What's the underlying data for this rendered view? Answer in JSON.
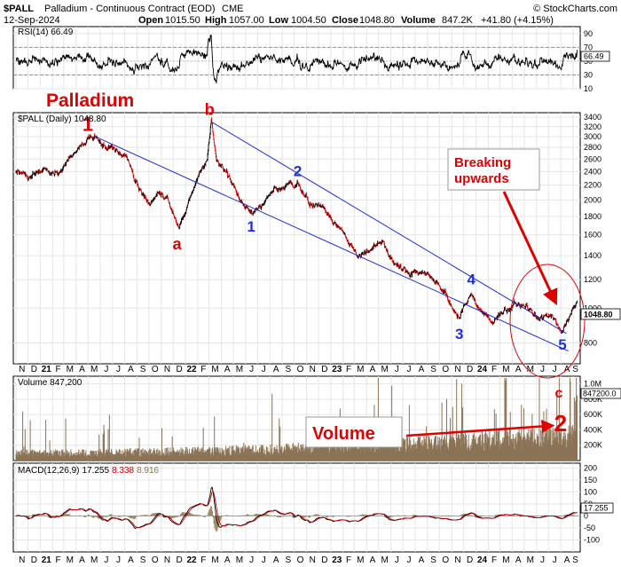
{
  "header": {
    "symbol": "$PALL",
    "name": "Palladium - Continuous Contract (EOD)",
    "exchange": "CME",
    "brand": "© StockCharts.com",
    "date": "12-Sep-2024",
    "open_label": "Open",
    "open": "1015.50",
    "high_label": "High",
    "high": "1057.00",
    "low_label": "Low",
    "low": "1004.50",
    "close_label": "Close",
    "close": "1048.80",
    "volume_label": "Volume",
    "volume": "847.2K",
    "change": "+41.80 (+4.15%)"
  },
  "chart_data": [
    {
      "type": "line",
      "panel": "rsi",
      "label": "RSI(14) 66.49",
      "ylim": [
        10,
        100
      ],
      "yticks": [
        10,
        30,
        50,
        70,
        90
      ],
      "last_value": "66.49",
      "levels": [
        30,
        70
      ]
    },
    {
      "type": "candlestick",
      "panel": "price",
      "label": "$PALL (Daily) 1048.80",
      "scale": "log",
      "ylim": [
        700,
        3500
      ],
      "yticks": [
        800,
        1000,
        1200,
        1400,
        1600,
        1800,
        2000,
        2200,
        2400,
        2600,
        2800,
        3000,
        3200,
        3400
      ],
      "last_value": "1048.80",
      "color": "#000000",
      "down_color": "#cc0000",
      "series": [
        {
          "date": "2020-11-01",
          "value": 2380
        },
        {
          "date": "2020-12-01",
          "value": 2330
        },
        {
          "date": "2021-01-15",
          "value": 2400
        },
        {
          "date": "2021-02-15",
          "value": 2350
        },
        {
          "date": "2021-03-20",
          "value": 2650
        },
        {
          "date": "2021-05-05",
          "value": 2980
        },
        {
          "date": "2021-06-10",
          "value": 2850
        },
        {
          "date": "2021-07-10",
          "value": 2780
        },
        {
          "date": "2021-08-05",
          "value": 2650
        },
        {
          "date": "2021-09-05",
          "value": 2150
        },
        {
          "date": "2021-10-01",
          "value": 1950
        },
        {
          "date": "2021-10-25",
          "value": 2100
        },
        {
          "date": "2021-11-15",
          "value": 2050
        },
        {
          "date": "2021-12-15",
          "value": 1650
        },
        {
          "date": "2022-01-05",
          "value": 1900
        },
        {
          "date": "2022-02-01",
          "value": 2300
        },
        {
          "date": "2022-02-25",
          "value": 2600
        },
        {
          "date": "2022-03-07",
          "value": 3300
        },
        {
          "date": "2022-03-20",
          "value": 2550
        },
        {
          "date": "2022-04-20",
          "value": 2350
        },
        {
          "date": "2022-05-20",
          "value": 2000
        },
        {
          "date": "2022-06-15",
          "value": 1850
        },
        {
          "date": "2022-07-15",
          "value": 1950
        },
        {
          "date": "2022-08-20",
          "value": 2150
        },
        {
          "date": "2022-09-20",
          "value": 2200
        },
        {
          "date": "2022-10-10",
          "value": 2200
        },
        {
          "date": "2022-11-10",
          "value": 1950
        },
        {
          "date": "2022-12-10",
          "value": 1920
        },
        {
          "date": "2023-01-05",
          "value": 1750
        },
        {
          "date": "2023-02-05",
          "value": 1600
        },
        {
          "date": "2023-03-10",
          "value": 1400
        },
        {
          "date": "2023-04-10",
          "value": 1450
        },
        {
          "date": "2023-05-10",
          "value": 1550
        },
        {
          "date": "2023-06-10",
          "value": 1330
        },
        {
          "date": "2023-07-10",
          "value": 1280
        },
        {
          "date": "2023-08-10",
          "value": 1240
        },
        {
          "date": "2023-09-10",
          "value": 1230
        },
        {
          "date": "2023-10-10",
          "value": 1130
        },
        {
          "date": "2023-11-20",
          "value": 930
        },
        {
          "date": "2023-12-20",
          "value": 1100
        },
        {
          "date": "2024-01-10",
          "value": 990
        },
        {
          "date": "2024-02-10",
          "value": 910
        },
        {
          "date": "2024-03-10",
          "value": 980
        },
        {
          "date": "2024-04-10",
          "value": 1040
        },
        {
          "date": "2024-05-10",
          "value": 1000
        },
        {
          "date": "2024-06-10",
          "value": 920
        },
        {
          "date": "2024-07-10",
          "value": 960
        },
        {
          "date": "2024-08-05",
          "value": 870
        },
        {
          "date": "2024-08-25",
          "value": 950
        },
        {
          "date": "2024-09-12",
          "value": 1048
        }
      ]
    },
    {
      "type": "bar",
      "panel": "volume",
      "label": "Volume 847,200",
      "ylim": [
        0,
        1100000
      ],
      "yticks": [
        200000,
        400000,
        600000,
        800000,
        1000000
      ],
      "ytick_labels": [
        "200K",
        "400K",
        "600K",
        "800K",
        "1.0M"
      ],
      "last_value": "847200.0",
      "color": "#8b7355"
    },
    {
      "type": "line",
      "panel": "macd",
      "label": "MACD(12,26,9)",
      "values": [
        "17.255",
        "8.338",
        "8.916"
      ],
      "ylim": [
        -150,
        220
      ],
      "yticks": [
        -100,
        -50,
        0,
        50,
        100,
        150,
        200
      ],
      "last_value": "17.255"
    }
  ],
  "x_axis": {
    "start": "2020-11-01",
    "end": "2024-09-12",
    "months": [
      {
        "label": "N",
        "date": "2020-11-01"
      },
      {
        "label": "D",
        "date": "2020-12-01"
      },
      {
        "label": "21",
        "date": "2021-01-01",
        "year": true
      },
      {
        "label": "F",
        "date": "2021-02-01"
      },
      {
        "label": "M",
        "date": "2021-03-01"
      },
      {
        "label": "A",
        "date": "2021-04-01"
      },
      {
        "label": "M",
        "date": "2021-05-01"
      },
      {
        "label": "J",
        "date": "2021-06-01"
      },
      {
        "label": "J",
        "date": "2021-07-01"
      },
      {
        "label": "A",
        "date": "2021-08-01"
      },
      {
        "label": "S",
        "date": "2021-09-01"
      },
      {
        "label": "O",
        "date": "2021-10-01"
      },
      {
        "label": "N",
        "date": "2021-11-01"
      },
      {
        "label": "D",
        "date": "2021-12-01"
      },
      {
        "label": "22",
        "date": "2022-01-01",
        "year": true
      },
      {
        "label": "F",
        "date": "2022-02-01"
      },
      {
        "label": "M",
        "date": "2022-03-01"
      },
      {
        "label": "A",
        "date": "2022-04-01"
      },
      {
        "label": "M",
        "date": "2022-05-01"
      },
      {
        "label": "J",
        "date": "2022-06-01"
      },
      {
        "label": "J",
        "date": "2022-07-01"
      },
      {
        "label": "A",
        "date": "2022-08-01"
      },
      {
        "label": "S",
        "date": "2022-09-01"
      },
      {
        "label": "O",
        "date": "2022-10-01"
      },
      {
        "label": "N",
        "date": "2022-11-01"
      },
      {
        "label": "D",
        "date": "2022-12-01"
      },
      {
        "label": "23",
        "date": "2023-01-01",
        "year": true
      },
      {
        "label": "F",
        "date": "2023-02-01"
      },
      {
        "label": "M",
        "date": "2023-03-01"
      },
      {
        "label": "A",
        "date": "2023-04-01"
      },
      {
        "label": "M",
        "date": "2023-05-01"
      },
      {
        "label": "J",
        "date": "2023-06-01"
      },
      {
        "label": "J",
        "date": "2023-07-01"
      },
      {
        "label": "A",
        "date": "2023-08-01"
      },
      {
        "label": "S",
        "date": "2023-09-01"
      },
      {
        "label": "O",
        "date": "2023-10-01"
      },
      {
        "label": "N",
        "date": "2023-11-01"
      },
      {
        "label": "D",
        "date": "2023-12-01"
      },
      {
        "label": "24",
        "date": "2024-01-01",
        "year": true
      },
      {
        "label": "F",
        "date": "2024-02-01"
      },
      {
        "label": "M",
        "date": "2024-03-01"
      },
      {
        "label": "A",
        "date": "2024-04-01"
      },
      {
        "label": "M",
        "date": "2024-05-01"
      },
      {
        "label": "J",
        "date": "2024-06-01"
      },
      {
        "label": "J",
        "date": "2024-07-01"
      },
      {
        "label": "A",
        "date": "2024-08-01"
      },
      {
        "label": "S",
        "date": "2024-09-01"
      }
    ]
  },
  "annotations": {
    "palladium_title": "Palladium",
    "breaking_text": "Breaking upwards",
    "breaking_lines": [
      "Breaking",
      "upwards"
    ],
    "volume_text": "Volume",
    "elliott_red": [
      {
        "text": "1",
        "date": "2021-05-05",
        "price": 2980,
        "pos": "above"
      },
      {
        "text": "b",
        "date": "2022-03-07",
        "price": 3300,
        "pos": "above"
      },
      {
        "text": "a",
        "date": "2021-12-15",
        "price": 1650,
        "pos": "below"
      },
      {
        "text": "c",
        "date": "2024-08-05",
        "price": 870,
        "pos": "volume"
      },
      {
        "text": "2",
        "date": "2024-08-05",
        "price": 870,
        "pos": "volume"
      }
    ],
    "elliott_blue": [
      {
        "text": "1",
        "date": "2022-06-15",
        "price": 1850,
        "pos": "below"
      },
      {
        "text": "2",
        "date": "2022-10-10",
        "price": 2200,
        "pos": "above"
      },
      {
        "text": "3",
        "date": "2023-11-20",
        "price": 930,
        "pos": "below"
      },
      {
        "text": "4",
        "date": "2023-12-20",
        "price": 1100,
        "pos": "above"
      },
      {
        "text": "5",
        "date": "2024-08-05",
        "price": 870,
        "pos": "below"
      }
    ],
    "channel_upper": [
      {
        "date": "2022-03-07",
        "price": 3300
      },
      {
        "date": "2024-08-15",
        "price": 850
      }
    ],
    "channel_lower": [
      {
        "date": "2021-05-20",
        "price": 3000
      },
      {
        "date": "2024-08-20",
        "price": 760
      }
    ]
  }
}
